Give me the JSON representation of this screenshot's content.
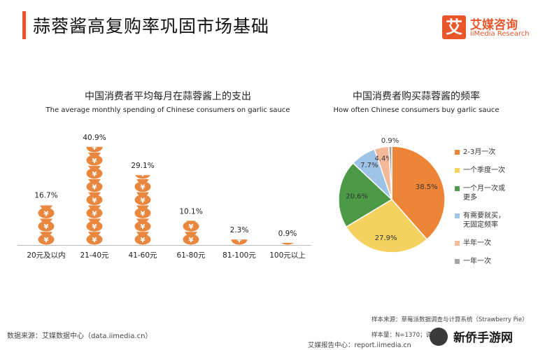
{
  "header": {
    "title": "蒜蓉酱高复购率巩固市场基础",
    "logo_icon_char": "艾",
    "logo_cn": "艾媒咨询",
    "logo_en": "iiMedia Research"
  },
  "colors": {
    "accent": "#e8562a",
    "bar_icon": "#e9873f",
    "pie": [
      "#ee8536",
      "#f5d15f",
      "#4c9a45",
      "#9dc3e6",
      "#f4b999",
      "#a5a5a5"
    ]
  },
  "chart_data": [
    {
      "type": "bar",
      "icon_name": "money-bag-icon",
      "title": "中国消费者平均每月在蒜蓉酱上的支出",
      "subtitle": "The average monthly spending of Chinese consumers on garlic sauce",
      "categories": [
        "20元及以内",
        "21-40元",
        "41-60元",
        "61-80元",
        "81-100元",
        "100元以上"
      ],
      "values": [
        16.7,
        40.9,
        29.1,
        10.1,
        2.3,
        0.9
      ],
      "value_labels": [
        "16.7%",
        "40.9%",
        "29.1%",
        "10.1%",
        "2.3%",
        "0.9%"
      ],
      "unit": "%",
      "ylim": [
        0,
        42
      ],
      "grid": false
    },
    {
      "type": "pie",
      "title": "中国消费者购买蒜蓉酱的频率",
      "subtitle": "How often Chinese consumers buy garlic sauce",
      "slices": [
        {
          "label": "2-3月一次",
          "value": 38.5,
          "value_label": "38.5%"
        },
        {
          "label": "一个季度一次",
          "value": 27.9,
          "value_label": "27.9%"
        },
        {
          "label": "一个月一次或更多",
          "legend_lines": [
            "一个月一次或",
            "更多"
          ],
          "value": 20.6,
          "value_label": "20.6%"
        },
        {
          "label": "有需要就买，无固定频率",
          "legend_lines": [
            "有需要就买，",
            "无固定频率"
          ],
          "value": 7.7,
          "value_label": "7.7%"
        },
        {
          "label": "半年一次",
          "value": 4.4,
          "value_label": "4.4%"
        },
        {
          "label": "一年一次",
          "value": 0.9,
          "value_label": "0.9%"
        }
      ],
      "legend_position": "right"
    }
  ],
  "footer": {
    "source_left": "数据来源：艾媒数据中心（data.iimedia.cn）",
    "sample_source": "样本来源：草莓派数据调查与计算系统（Strawberry Pie）",
    "sample_size": "样本量：N=1370；调",
    "report_center": "艾媒报告中心：report.iimedia.cn",
    "watermark": "新侨手游网"
  }
}
